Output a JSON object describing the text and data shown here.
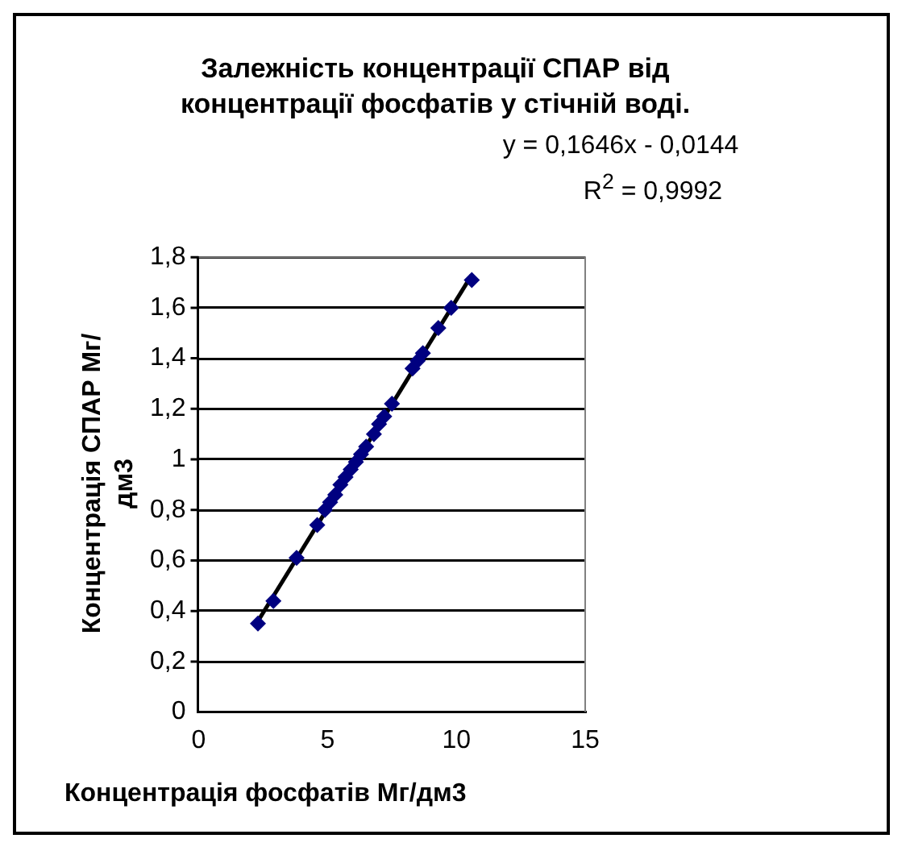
{
  "chart_data": {
    "type": "scatter",
    "title": "Залежність концентрації СПАР від концентрації фосфатів у стічній воді.",
    "xlabel": "Концентрація фосфатів Мг/дм3",
    "ylabel": "Концентрація СПАР Мг/дм3",
    "annotations": [
      "y = 0,1646x - 0,0144",
      "R$^{2}$ = 0,9992"
    ],
    "series": [
      {
        "color": "#000080",
        "marker": "diamond",
        "x": [
          2.3,
          2.9,
          3.8,
          4.6,
          4.9,
          5.1,
          5.3,
          5.5,
          5.7,
          5.9,
          6.1,
          6.3,
          6.5,
          6.8,
          7.0,
          7.2,
          7.5,
          8.3,
          8.5,
          8.7,
          9.3,
          9.8,
          10.6
        ],
        "values": [
          0.35,
          0.44,
          0.61,
          0.74,
          0.8,
          0.83,
          0.86,
          0.9,
          0.93,
          0.96,
          0.99,
          1.02,
          1.05,
          1.1,
          1.14,
          1.17,
          1.22,
          1.36,
          1.39,
          1.42,
          1.52,
          1.6,
          1.71
        ]
      },
      {
        "type": "line",
        "color": "#000000",
        "marker": "none",
        "x": [
          2.3,
          10.6
        ],
        "values": [
          0.36,
          1.73
        ]
      }
    ],
    "xlim": [
      0,
      15
    ],
    "xticks": [
      0,
      5,
      10,
      15
    ],
    "ylim": [
      0,
      1.8
    ],
    "yticks": [
      0,
      {
        "value": 0.2,
        "label": "0,2"
      },
      {
        "value": 0.4,
        "label": "0,4"
      },
      {
        "value": 0.6,
        "label": "0,6"
      },
      {
        "value": 0.8,
        "label": "0,8"
      },
      1,
      {
        "value": 1.2,
        "label": "1,2"
      },
      {
        "value": 1.4,
        "label": "1,4"
      },
      {
        "value": 1.6,
        "label": "1,6"
      },
      {
        "value": 1.8,
        "label": "1,8"
      }
    ],
    "grid": "y",
    "legend": false
  }
}
